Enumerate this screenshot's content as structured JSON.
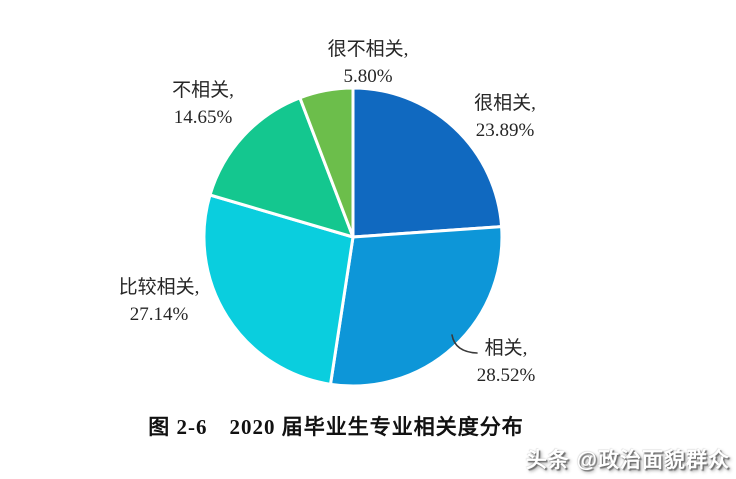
{
  "chart_data": {
    "type": "pie",
    "title": "图 2-6　2020 届毕业生专业相关度分布",
    "start_angle_deg": 0,
    "direction": "clockwise",
    "legend": "none",
    "labels_position": "outside",
    "label_format": "name, percent",
    "slices": [
      {
        "key": "very-related",
        "name": "很相关",
        "value": 23.89,
        "label": "很相关,",
        "pct": "23.89%",
        "color": "#1069C0"
      },
      {
        "key": "related",
        "name": "相关",
        "value": 28.52,
        "label": "相关,",
        "pct": "28.52%",
        "color": "#0D96D8"
      },
      {
        "key": "somewhat-related",
        "name": "比较相关",
        "value": 27.14,
        "label": "比较相关,",
        "pct": "27.14%",
        "color": "#0ACEDE"
      },
      {
        "key": "unrelated",
        "name": "不相关",
        "value": 14.65,
        "label": "不相关,",
        "pct": "14.65%",
        "color": "#14C78F"
      },
      {
        "key": "very-unrelated",
        "name": "很不相关",
        "value": 5.8,
        "label": "很不相关,",
        "pct": "5.80%",
        "color": "#6CBE4B"
      }
    ],
    "slice_border_color": "#ffffff",
    "label_text_color": "#262626"
  },
  "caption": {
    "text": "图 2-6　2020 届毕业生专业相关度分布"
  },
  "watermark": {
    "text": "头条 @政治面貌群众"
  }
}
